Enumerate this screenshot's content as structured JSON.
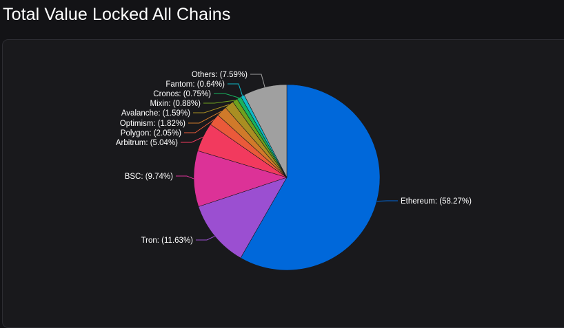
{
  "page": {
    "title": "Total Value Locked All Chains"
  },
  "chart_data": {
    "type": "pie",
    "title": "Total Value Locked All Chains",
    "start_angle": "top",
    "direction": "clockwise",
    "slices": [
      {
        "name": "Ethereum",
        "value": 58.27,
        "label": "Ethereum: (58.27%)",
        "color": "#0068da"
      },
      {
        "name": "Tron",
        "value": 11.63,
        "label": "Tron: (11.63%)",
        "color": "#9b4fd1"
      },
      {
        "name": "BSC",
        "value": 9.74,
        "label": "BSC: (9.74%)",
        "color": "#dc3297"
      },
      {
        "name": "Arbitrum",
        "value": 5.04,
        "label": "Arbitrum: (5.04%)",
        "color": "#f23a5e"
      },
      {
        "name": "Polygon",
        "value": 2.05,
        "label": "Polygon: (2.05%)",
        "color": "#ea5a3a"
      },
      {
        "name": "Optimism",
        "value": 1.82,
        "label": "Optimism: (1.82%)",
        "color": "#d07a2a"
      },
      {
        "name": "Avalanche",
        "value": 1.59,
        "label": "Avalanche: (1.59%)",
        "color": "#a98e22"
      },
      {
        "name": "Mixin",
        "value": 0.88,
        "label": "Mixin: (0.88%)",
        "color": "#6ea11e"
      },
      {
        "name": "Cronos",
        "value": 0.75,
        "label": "Cronos: (0.75%)",
        "color": "#18b25f"
      },
      {
        "name": "Fantom",
        "value": 0.64,
        "label": "Fantom: (0.64%)",
        "color": "#0fb9c9"
      },
      {
        "name": "Others",
        "value": 7.59,
        "label": "Others: (7.59%)",
        "color": "#a0a0a0"
      }
    ]
  }
}
